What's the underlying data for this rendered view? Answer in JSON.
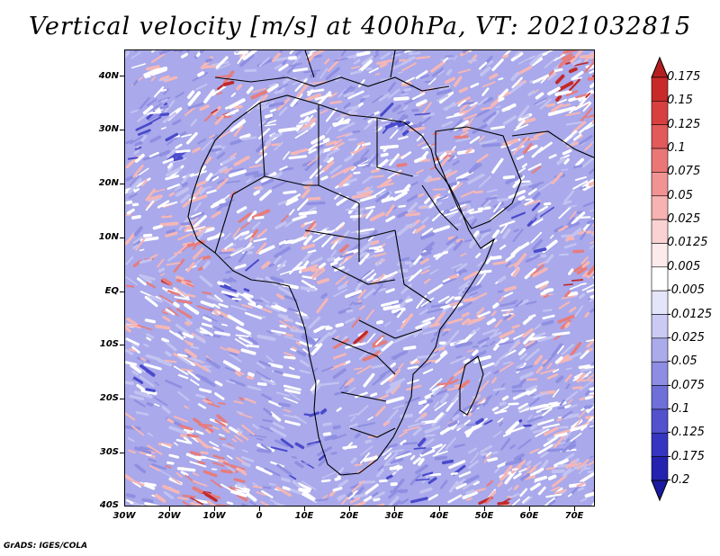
{
  "title": "Vertical velocity [m/s] at 400hPa, VT: 2021032815",
  "credit": "GrADS: IGES/COLA",
  "lat_labels": [
    "40N",
    "30N",
    "20N",
    "10N",
    "EQ",
    "10S",
    "20S",
    "30S",
    "40S"
  ],
  "lon_labels": [
    "30W",
    "20W",
    "10W",
    "0",
    "10E",
    "20E",
    "30E",
    "40E",
    "50E",
    "60E",
    "70E"
  ],
  "colorbar": {
    "labels": [
      "0.175",
      "0.15",
      "0.125",
      "0.1",
      "0.075",
      "0.05",
      "0.025",
      "0.0125",
      "0.005",
      "-0.005",
      "-0.0125",
      "-0.025",
      "-0.05",
      "-0.075",
      "-0.1",
      "-0.125",
      "-0.175",
      "-0.2"
    ],
    "colors": [
      "#b51e1e",
      "#c82a2a",
      "#d84040",
      "#e25a5a",
      "#eb7676",
      "#f29393",
      "#f7b2b2",
      "#fbd2d2",
      "#fdeaea",
      "#ffffff",
      "#e4e4fb",
      "#cacaf4",
      "#ababec",
      "#8d8de3",
      "#6f6fd9",
      "#5252cf",
      "#3535c2",
      "#2323b0",
      "#1a1aa0"
    ]
  },
  "palette": {
    "blue_light": "#c3c3f2",
    "blue_mid": "#8f8fe2",
    "blue_dark": "#4a4acb",
    "red_light": "#f4b7b7",
    "red_mid": "#e67c7c",
    "red_dark": "#c02a2a",
    "background": "#a9a9eb"
  }
}
